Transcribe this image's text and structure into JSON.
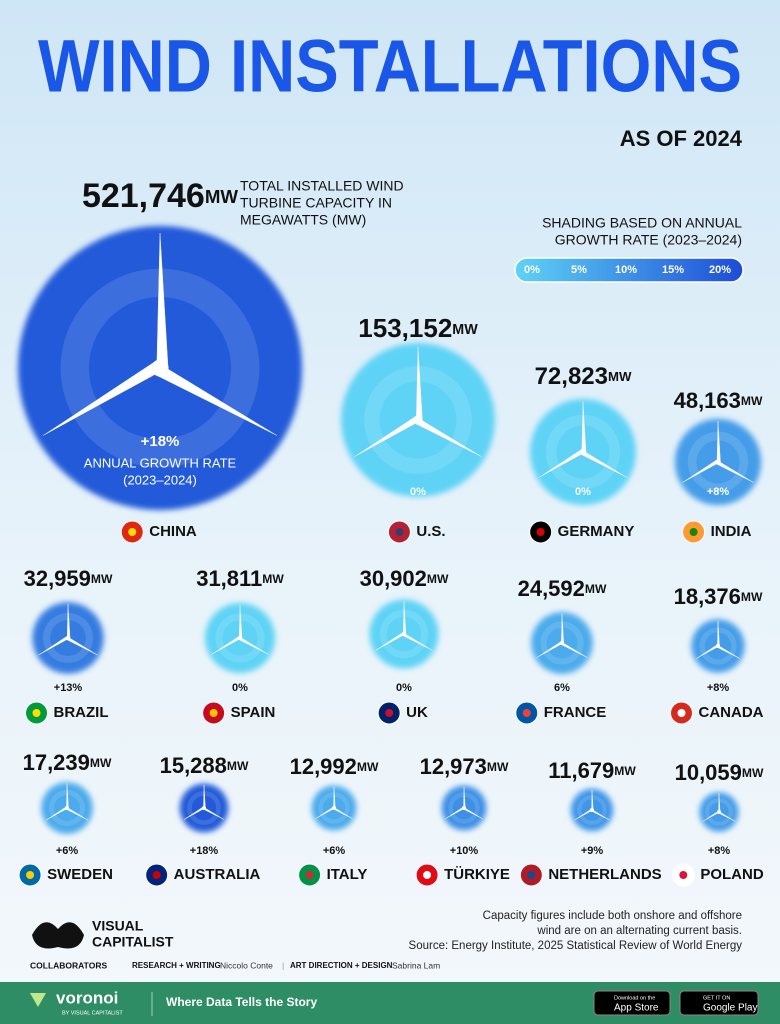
{
  "chart_data": {
    "type": "bubble",
    "title": "WIND INSTALLATIONS",
    "subtitle": "AS OF 2024",
    "size_label": [
      "TOTAL INSTALLED WIND",
      "TURBINE CAPACITY IN",
      "MEGAWATTS (MW)"
    ],
    "unit": "MW",
    "growth_label": [
      "ANNUAL GROWTH RATE",
      "(2023–2024)"
    ],
    "legend_title": [
      "SHADING BASED ON ANNUAL",
      "GROWTH RATE (2023–2024)"
    ],
    "legend_ticks": [
      {
        "value": 0,
        "label": "0%"
      },
      {
        "value": 5,
        "label": "5%"
      },
      {
        "value": 10,
        "label": "10%"
      },
      {
        "value": 15,
        "label": "15%"
      },
      {
        "value": 20,
        "label": "20%"
      }
    ],
    "colors": [
      "#5fd3f6",
      "#1d4cd6"
    ],
    "categories": [
      "CHINA",
      "U.S.",
      "GERMANY",
      "INDIA",
      "BRAZIL",
      "SPAIN",
      "UK",
      "FRANCE",
      "CANADA",
      "SWEDEN",
      "AUSTRALIA",
      "ITALY",
      "TÜRKIYE",
      "NETHERLANDS",
      "POLAND"
    ],
    "values": [
      521746,
      153152,
      72823,
      48163,
      32959,
      31811,
      30902,
      24592,
      18376,
      17239,
      15288,
      12992,
      12973,
      11679,
      10059
    ],
    "value_labels": [
      "521,746",
      "153,152",
      "72,823",
      "48,163",
      "32,959",
      "31,811",
      "30,902",
      "24,592",
      "18,376",
      "17,239",
      "15,288",
      "12,992",
      "12,973",
      "11,679",
      "10,059"
    ],
    "growth": [
      18,
      0,
      0,
      8,
      13,
      0,
      0,
      6,
      8,
      6,
      18,
      6,
      10,
      9,
      8
    ],
    "growth_labels": [
      "+18%",
      "0%",
      "0%",
      "+8%",
      "+13%",
      "0%",
      "0%",
      "6%",
      "+8%",
      "+6%",
      "+18%",
      "+6%",
      "+10%",
      "+9%",
      "+8%"
    ]
  },
  "footer": {
    "notes": [
      "Capacity figures include both onshore and offshore",
      "wind are on an alternating current basis.",
      "Source: Energy Institute, 2025 Statistical Review of World Energy"
    ],
    "logo": [
      "VISUAL",
      "CAPITALIST"
    ],
    "collaborators": "COLLABORATORS",
    "research_role": "RESEARCH + WRITING",
    "research_name": "Niccolo Conte",
    "design_role": "ART DIRECTION + DESIGN",
    "design_name": "Sabrina Lam",
    "brand": "voronoi",
    "brand_sub": "BY VISUAL CAPITALIST",
    "tagline": "Where Data Tells the Story",
    "appstore_small": "Download on the",
    "appstore": "App Store",
    "gplay_small": "GET IT ON",
    "gplay": "Google Play"
  }
}
